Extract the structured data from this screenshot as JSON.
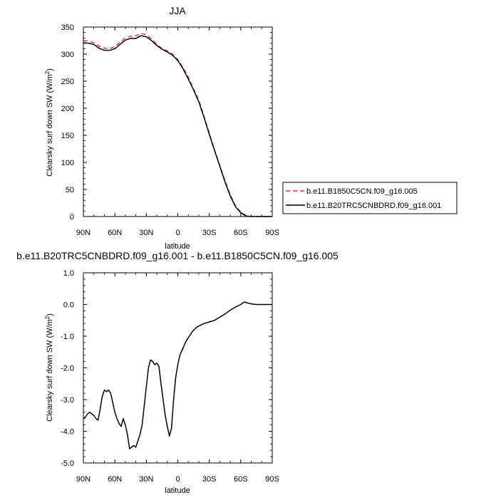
{
  "chart_data": [
    {
      "type": "line",
      "title": "JJA",
      "xlabel": "latitude",
      "ylabel": "Clearsky surf down SW (W/m",
      "ylabel_sup": "2",
      "ylabel_end": ")",
      "xlim": [
        90,
        -90
      ],
      "ylim": [
        0,
        350
      ],
      "xticks": [
        90,
        60,
        30,
        0,
        -30,
        -60,
        -90
      ],
      "xtick_labels": [
        "90N",
        "60N",
        "30N",
        "0",
        "30S",
        "60S",
        "90S"
      ],
      "yticks": [
        0,
        50,
        100,
        150,
        200,
        250,
        300,
        350
      ],
      "ytick_labels": [
        "0",
        "50",
        "100",
        "150",
        "200",
        "250",
        "300",
        "350"
      ],
      "legend_position": "right",
      "series": [
        {
          "name": "b.e11.B1850C5CN.f09_g16.005",
          "color": "#e0342e",
          "dash": "dashed",
          "x": [
            90,
            85,
            80,
            75,
            70,
            65,
            60,
            55,
            50,
            45,
            40,
            35,
            30,
            25,
            20,
            15,
            10,
            5,
            0,
            -5,
            -10,
            -15,
            -20,
            -25,
            -30,
            -35,
            -40,
            -45,
            -50,
            -55,
            -60,
            -65,
            -70,
            -75,
            -80,
            -85,
            -90
          ],
          "y": [
            325,
            324,
            321,
            315,
            311,
            310,
            314,
            322,
            330,
            333,
            334,
            338,
            336,
            328,
            318,
            310,
            306,
            300,
            290,
            275,
            258,
            236,
            215,
            185,
            154,
            123,
            95,
            66,
            40,
            20,
            8,
            2,
            0,
            0,
            0,
            0,
            0
          ]
        },
        {
          "name": "b.e11.B20TRC5CNBDRD.f09_g16.001",
          "color": "#000000",
          "dash": "solid",
          "x": [
            90,
            85,
            80,
            75,
            70,
            65,
            60,
            55,
            50,
            45,
            40,
            35,
            30,
            25,
            20,
            15,
            10,
            5,
            0,
            -5,
            -10,
            -15,
            -20,
            -25,
            -30,
            -35,
            -40,
            -45,
            -50,
            -55,
            -60,
            -65,
            -70,
            -75,
            -80,
            -85,
            -90
          ],
          "y": [
            321,
            320,
            318,
            311,
            307,
            307,
            310,
            318,
            326,
            329,
            329,
            334,
            332,
            325,
            316,
            309,
            304,
            298,
            288,
            273,
            254,
            234,
            212,
            183,
            152,
            122,
            93,
            64,
            38,
            18,
            7,
            1,
            0,
            0,
            0,
            0,
            0
          ]
        }
      ]
    },
    {
      "type": "line",
      "title": "b.e11.B20TRC5CNBDRD.f09_g16.001 - b.e11.B1850C5CN.f09_g16.005",
      "xlabel": "latitude",
      "ylabel": "Clearsky surf down SW (W/m",
      "ylabel_sup": "2",
      "ylabel_end": ")",
      "xlim": [
        90,
        -90
      ],
      "ylim": [
        -5.0,
        1.0
      ],
      "xticks": [
        90,
        60,
        30,
        0,
        -30,
        -60,
        -90
      ],
      "xtick_labels": [
        "90N",
        "60N",
        "30N",
        "0",
        "30S",
        "60S",
        "90S"
      ],
      "yticks": [
        -5.0,
        -4.0,
        -3.0,
        -2.0,
        -1.0,
        0.0,
        1.0
      ],
      "ytick_labels": [
        "-5.0",
        "-4.0",
        "-3.0",
        "-2.0",
        "-1.0",
        "0.0",
        "1.0"
      ],
      "series": [
        {
          "name": "",
          "color": "#000000",
          "dash": "solid",
          "x": [
            90,
            88,
            86,
            84,
            82,
            80,
            78,
            76,
            74,
            72,
            70,
            68,
            66,
            64,
            62,
            60,
            58,
            56,
            54,
            52,
            50,
            48,
            46,
            44,
            42,
            40,
            38,
            36,
            34,
            32,
            30,
            28,
            26,
            24,
            22,
            20,
            18,
            16,
            14,
            12,
            10,
            8,
            6,
            4,
            2,
            0,
            -2,
            -4,
            -6,
            -8,
            -10,
            -12,
            -14,
            -16,
            -18,
            -20,
            -25,
            -30,
            -35,
            -40,
            -45,
            -50,
            -55,
            -60,
            -62,
            -64,
            -66,
            -70,
            -75,
            -80,
            -85,
            -90
          ],
          "y": [
            -3.6,
            -3.55,
            -3.45,
            -3.4,
            -3.45,
            -3.5,
            -3.6,
            -3.65,
            -3.3,
            -2.9,
            -2.7,
            -2.75,
            -2.7,
            -2.8,
            -3.1,
            -3.4,
            -3.6,
            -3.75,
            -3.85,
            -3.6,
            -3.8,
            -4.1,
            -4.55,
            -4.5,
            -4.45,
            -4.5,
            -4.3,
            -4.1,
            -3.8,
            -3.2,
            -2.6,
            -2.0,
            -1.75,
            -1.8,
            -1.9,
            -1.85,
            -1.95,
            -2.5,
            -3.0,
            -3.5,
            -3.85,
            -4.15,
            -3.9,
            -3.0,
            -2.3,
            -1.9,
            -1.6,
            -1.45,
            -1.3,
            -1.15,
            -1.05,
            -0.95,
            -0.85,
            -0.78,
            -0.72,
            -0.68,
            -0.6,
            -0.55,
            -0.5,
            -0.4,
            -0.3,
            -0.18,
            -0.08,
            0.0,
            0.05,
            0.08,
            0.05,
            0.02,
            0.0,
            0.0,
            0.0,
            0.0
          ]
        }
      ]
    }
  ]
}
